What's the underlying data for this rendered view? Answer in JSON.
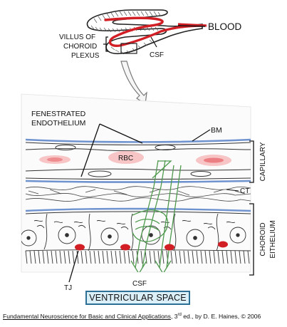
{
  "labels": {
    "blood": "BLOOD",
    "villus_line1": "VILLUS OF",
    "villus_line2": "CHOROID",
    "villus_line3": "PLEXUS",
    "csf_top": "CSF",
    "fenestrated_line1": "FENESTRATED",
    "fenestrated_line2": "ENDOTHELIUM",
    "bm": "BM",
    "rbc": "RBC",
    "capillary": "CAPILLARY",
    "ct": "CT",
    "choroid_line1": "CHOROID",
    "choroid_line2": "EITHELIUM",
    "tj": "TJ",
    "csf_bottom": "CSF",
    "ventricular_space": "VENTRICULAR SPACE"
  },
  "citation": {
    "title": "Fundamental Neuroscience for Basic and Clinical Applications",
    "edition_num": "3",
    "edition_sup": "rd",
    "rest": " ed., by D. E. Haines, © 2006",
    "comma": ", "
  },
  "colors": {
    "blood_red": "#d21f26",
    "rbc_pink": "#f4a6a8",
    "membrane_blue": "#6f93cf",
    "csf_green": "#4f9a4f",
    "box_fill": "#dbeff9",
    "box_border": "#2e6f96"
  }
}
